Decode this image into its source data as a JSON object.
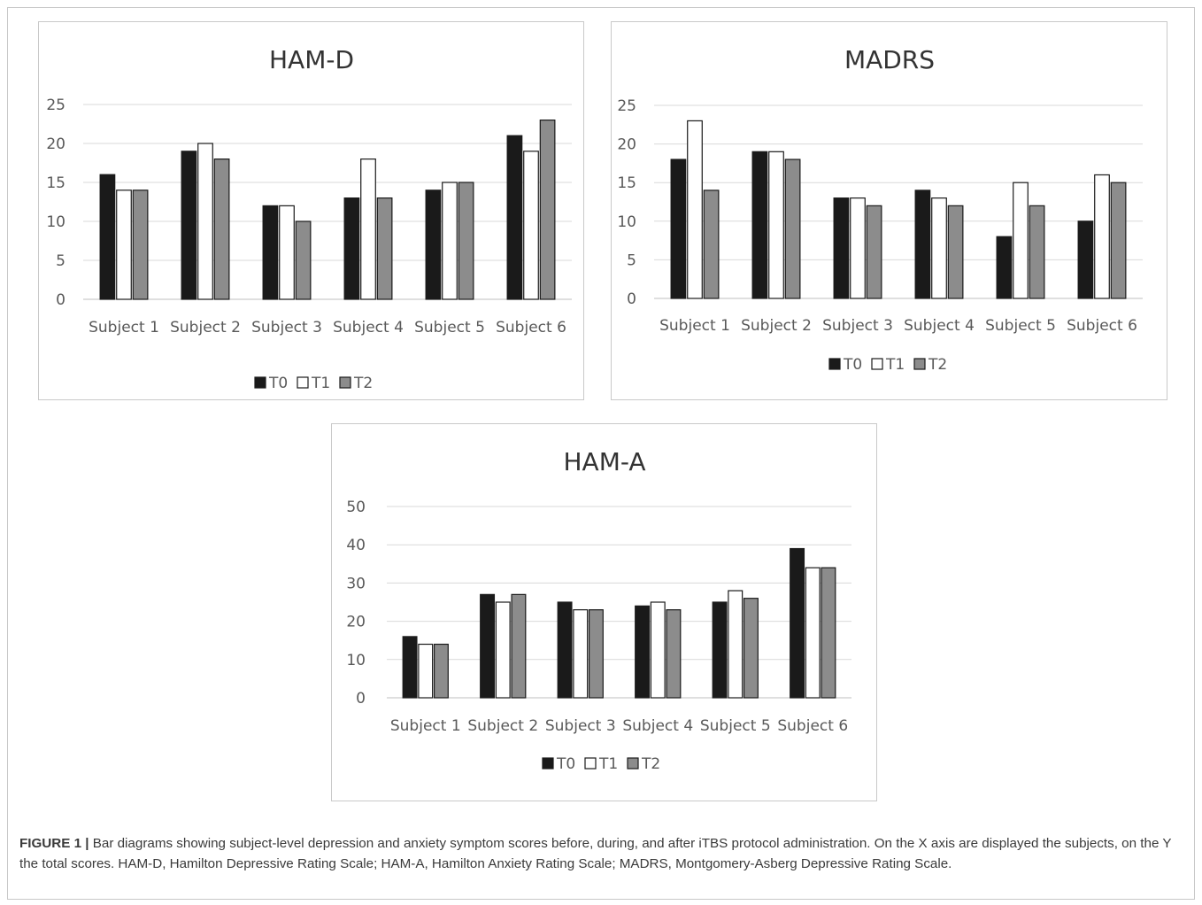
{
  "chart_data": [
    {
      "type": "bar",
      "title": "HAM-D",
      "categories": [
        "Subject 1",
        "Subject 2",
        "Subject 3",
        "Subject 4",
        "Subject 5",
        "Subject 6"
      ],
      "series": [
        {
          "name": "T0",
          "color": "#1a1a1a",
          "values": [
            16,
            19,
            12,
            13,
            14,
            21
          ]
        },
        {
          "name": "T1",
          "color": "#ffffff",
          "values": [
            14,
            20,
            12,
            18,
            15,
            19
          ]
        },
        {
          "name": "T2",
          "color": "#8c8c8c",
          "values": [
            14,
            18,
            10,
            13,
            15,
            23
          ]
        }
      ],
      "yticks": [
        0,
        5,
        10,
        15,
        20,
        25
      ],
      "ylim": [
        0,
        25
      ],
      "grid": true,
      "legend": "bottom"
    },
    {
      "type": "bar",
      "title": "MADRS",
      "categories": [
        "Subject 1",
        "Subject 2",
        "Subject 3",
        "Subject 4",
        "Subject 5",
        "Subject 6"
      ],
      "series": [
        {
          "name": "T0",
          "color": "#1a1a1a",
          "values": [
            18,
            19,
            13,
            14,
            8,
            10
          ]
        },
        {
          "name": "T1",
          "color": "#ffffff",
          "values": [
            23,
            19,
            13,
            13,
            15,
            16
          ]
        },
        {
          "name": "T2",
          "color": "#8c8c8c",
          "values": [
            14,
            18,
            12,
            12,
            12,
            15
          ]
        }
      ],
      "yticks": [
        0,
        5,
        10,
        15,
        20,
        25
      ],
      "ylim": [
        0,
        25
      ],
      "grid": true,
      "legend": "bottom"
    },
    {
      "type": "bar",
      "title": "HAM-A",
      "categories": [
        "Subject 1",
        "Subject 2",
        "Subject 3",
        "Subject 4",
        "Subject 5",
        "Subject 6"
      ],
      "series": [
        {
          "name": "T0",
          "color": "#1a1a1a",
          "values": [
            16,
            27,
            25,
            24,
            25,
            39
          ]
        },
        {
          "name": "T1",
          "color": "#ffffff",
          "values": [
            14,
            25,
            23,
            25,
            28,
            34
          ]
        },
        {
          "name": "T2",
          "color": "#8c8c8c",
          "values": [
            14,
            27,
            23,
            23,
            26,
            34
          ]
        }
      ],
      "yticks": [
        0,
        10,
        20,
        30,
        40,
        50
      ],
      "ylim": [
        0,
        50
      ],
      "grid": true,
      "legend": "bottom"
    }
  ],
  "caption": {
    "label": "FIGURE 1 |",
    "text": "Bar diagrams showing subject-level depression and anxiety symptom scores before, during, and after iTBS protocol administration. On the X axis are displayed the subjects, on the Y the total scores. HAM-D, Hamilton Depressive Rating Scale; HAM-A, Hamilton Anxiety Rating Scale; MADRS, Montgomery-Asberg Depressive Rating Scale."
  }
}
